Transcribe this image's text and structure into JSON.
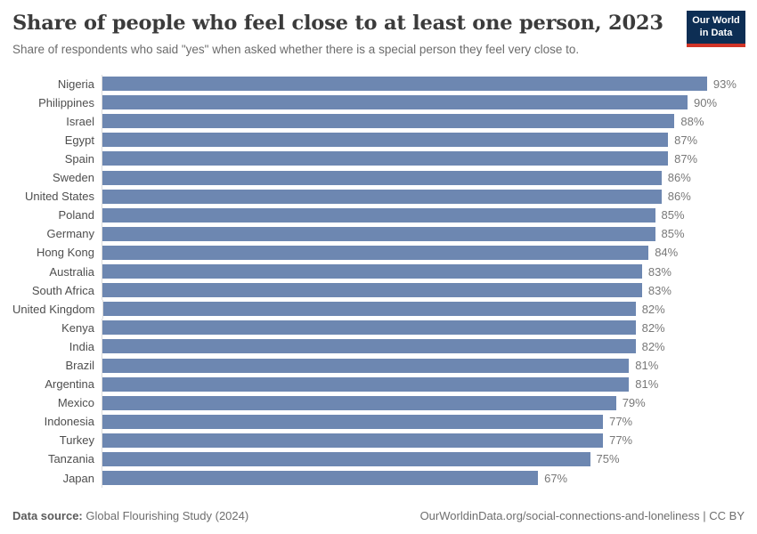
{
  "header": {
    "title": "Share of people who feel close to at least one person, 2023",
    "subtitle": "Share of respondents who said \"yes\" when asked whether there is a special person they feel very close to.",
    "logo": {
      "line1": "Our World",
      "line2": "in Data"
    }
  },
  "chart_data": {
    "type": "bar",
    "orientation": "horizontal",
    "title": "Share of people who feel close to at least one person, 2023",
    "unit": "%",
    "xlim": [
      0,
      100
    ],
    "grid": false,
    "bar_color": "#6d87b1",
    "categories": [
      "Nigeria",
      "Philippines",
      "Israel",
      "Egypt",
      "Spain",
      "Sweden",
      "United States",
      "Poland",
      "Germany",
      "Hong Kong",
      "Australia",
      "South Africa",
      "United Kingdom",
      "Kenya",
      "India",
      "Brazil",
      "Argentina",
      "Mexico",
      "Indonesia",
      "Turkey",
      "Tanzania",
      "Japan"
    ],
    "values": [
      93,
      90,
      88,
      87,
      87,
      86,
      86,
      85,
      85,
      84,
      83,
      83,
      82,
      82,
      82,
      81,
      81,
      79,
      77,
      77,
      75,
      67
    ]
  },
  "footer": {
    "datasource_label": "Data source:",
    "datasource_value": "Global Flourishing Study (2024)",
    "url": "OurWorldinData.org/social-connections-and-loneliness",
    "license": "| CC BY"
  },
  "colors": {
    "bar": "#6d87b1",
    "logo_navy": "#0d2e54",
    "logo_red": "#d13427",
    "title_text": "#3b3b3b",
    "axis_line": "#dcdcdc"
  }
}
